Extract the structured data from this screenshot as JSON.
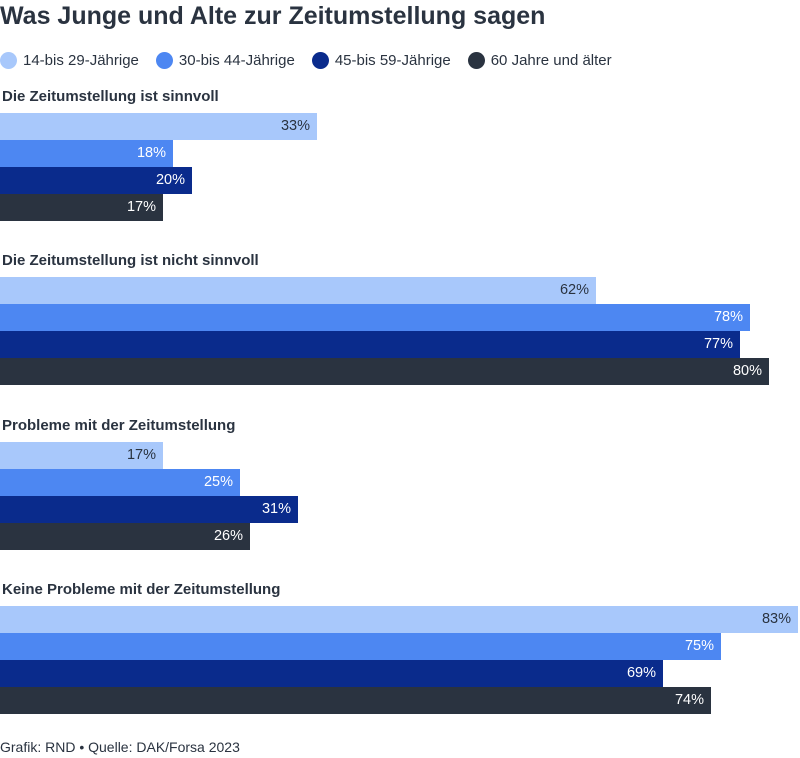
{
  "chart_data": {
    "type": "bar",
    "orientation": "horizontal",
    "title": "Was Junge und Alte zur Zeitumstellung sagen",
    "categories": [
      "Die Zeitumstellung ist sinnvoll",
      "Die Zeitumstellung ist nicht sinnvoll",
      "Probleme mit der Zeitumstellung",
      "Keine Probleme mit der Zeitumstellung"
    ],
    "series": [
      {
        "name": "14-bis 29-Jährige",
        "color": "#a8c8fb",
        "label_color": "#2a3340",
        "values": [
          33,
          62,
          17,
          83
        ],
        "labels": [
          "33%",
          "62%",
          "17%",
          "83%"
        ]
      },
      {
        "name": "30-bis 44-Jährige",
        "color": "#4d87f2",
        "label_color": "#ffffff",
        "values": [
          18,
          78,
          25,
          75
        ],
        "labels": [
          "18%",
          "78%",
          "25%",
          "75%"
        ]
      },
      {
        "name": "45-bis 59-Jährige",
        "color": "#0a2b8c",
        "label_color": "#ffffff",
        "values": [
          20,
          77,
          31,
          69
        ],
        "labels": [
          "20%",
          "77%",
          "31%",
          "69%"
        ]
      },
      {
        "name": "60 Jahre und älter",
        "color": "#2a3340",
        "label_color": "#ffffff",
        "values": [
          17,
          80,
          26,
          74
        ],
        "labels": [
          "17%",
          "80%",
          "26%",
          "74%"
        ]
      }
    ],
    "xlim": [
      0,
      83
    ],
    "legend": "top",
    "grid": false,
    "source": "Grafik: RND • Quelle: DAK/Forsa 2023"
  }
}
